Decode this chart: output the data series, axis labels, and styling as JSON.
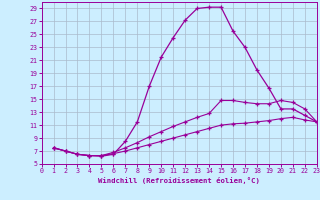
{
  "xlabel": "Windchill (Refroidissement éolien,°C)",
  "bg_color": "#cceeff",
  "grid_color": "#aabbcc",
  "line_color": "#990099",
  "xlim": [
    0,
    23
  ],
  "ylim": [
    5,
    30
  ],
  "xticks": [
    0,
    1,
    2,
    3,
    4,
    5,
    6,
    7,
    8,
    9,
    10,
    11,
    12,
    13,
    14,
    15,
    16,
    17,
    18,
    19,
    20,
    21,
    22,
    23
  ],
  "yticks": [
    5,
    7,
    9,
    11,
    13,
    15,
    17,
    19,
    21,
    23,
    25,
    27,
    29
  ],
  "curve1_x": [
    1,
    2,
    3,
    4,
    5,
    6,
    7,
    8,
    9,
    10,
    11,
    12,
    13,
    14,
    15,
    16,
    17,
    18,
    19,
    20,
    21,
    22,
    23
  ],
  "curve1_y": [
    7.5,
    7.0,
    6.5,
    6.3,
    6.2,
    6.5,
    8.5,
    11.5,
    17.0,
    21.5,
    24.5,
    27.2,
    29.0,
    29.2,
    29.2,
    25.5,
    23.0,
    19.5,
    16.7,
    13.5,
    13.5,
    12.5,
    11.5
  ],
  "curve2_x": [
    1,
    2,
    3,
    4,
    5,
    6,
    7,
    8,
    9,
    10,
    11,
    12,
    13,
    14,
    15,
    16,
    17,
    18,
    19,
    20,
    21,
    22,
    23
  ],
  "curve2_y": [
    7.5,
    7.0,
    6.5,
    6.3,
    6.3,
    6.8,
    7.5,
    8.3,
    9.2,
    10.0,
    10.8,
    11.5,
    12.2,
    12.8,
    14.8,
    14.8,
    14.5,
    14.3,
    14.3,
    14.8,
    14.5,
    13.5,
    11.5
  ],
  "curve3_x": [
    1,
    2,
    3,
    4,
    5,
    6,
    7,
    8,
    9,
    10,
    11,
    12,
    13,
    14,
    15,
    16,
    17,
    18,
    19,
    20,
    21,
    22,
    23
  ],
  "curve3_y": [
    7.5,
    7.0,
    6.5,
    6.3,
    6.3,
    6.6,
    7.0,
    7.5,
    8.0,
    8.5,
    9.0,
    9.5,
    10.0,
    10.5,
    11.0,
    11.2,
    11.3,
    11.5,
    11.7,
    12.0,
    12.2,
    11.8,
    11.5
  ]
}
